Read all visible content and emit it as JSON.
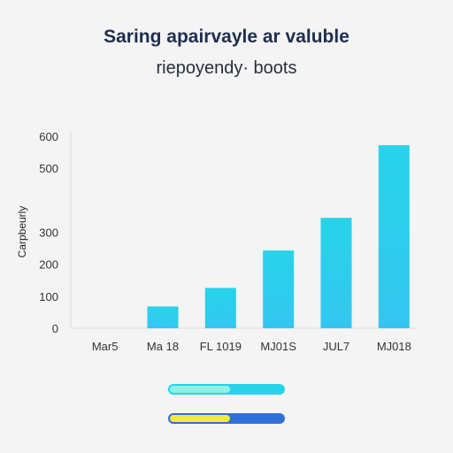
{
  "title": "Saring apairvayle ar valuble",
  "subtitle": "riepoyendy· boots",
  "colors": {
    "bar": "#27d3ea",
    "bar_bottom": "#34c6f0",
    "axis_text": "#333333",
    "grid": "#dedede",
    "progress1_track": "#26d4ea",
    "progress1_fill": "#8ff0e4",
    "progress2_track": "#2f6fd8",
    "progress2_fill": "#f2ea3a"
  },
  "chart_data": {
    "type": "bar",
    "title": "Saring apairvayle ar valuble",
    "subtitle": "riepoyendy· boots",
    "ylabel": "Carpbeurly",
    "xlabel": "",
    "categories": [
      "Mar5",
      "Ma 18",
      "FL 1019",
      "MJ01S",
      "JUL7",
      "MJ018"
    ],
    "values": [
      0,
      68,
      126,
      243,
      345,
      572
    ],
    "ylim": [
      0,
      600
    ],
    "yticks": [
      0,
      100,
      200,
      300,
      500,
      600
    ],
    "grid": false,
    "legend": "none"
  },
  "progress": [
    {
      "value": 0.53
    },
    {
      "value": 0.53
    }
  ]
}
